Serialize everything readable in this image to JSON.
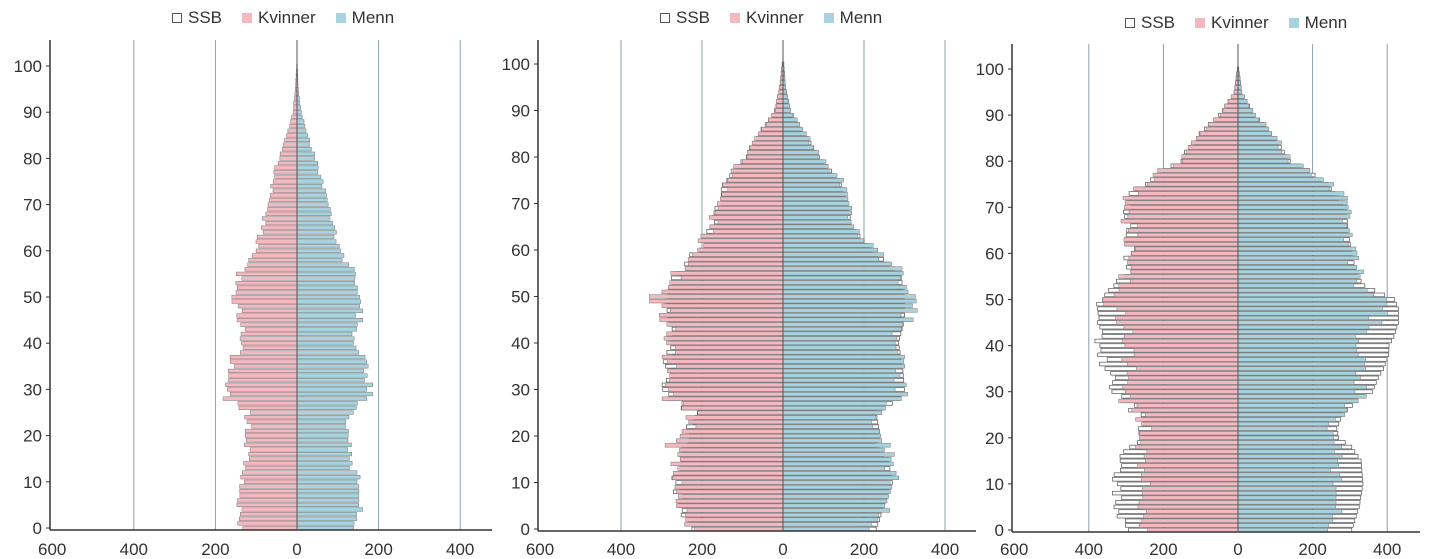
{
  "chart_data": [
    {
      "type": "bar",
      "orientation": "horizontal-pyramid",
      "legend": {
        "placement": "top-center",
        "items": [
          "SSB",
          "Kvinner",
          "Menn"
        ]
      },
      "y_ticks": [
        "0",
        "10",
        "20",
        "30",
        "40",
        "50",
        "60",
        "70",
        "80",
        "90",
        "100"
      ],
      "x_ticks": [
        "600",
        "400",
        "200",
        "0",
        "200",
        "400"
      ],
      "xlim": [
        -600,
        500
      ],
      "ylim": [
        0,
        105
      ],
      "grid": true,
      "series": [
        {
          "name": "Kvinner",
          "anchors": [
            [
              0,
              140
            ],
            [
              5,
              140
            ],
            [
              10,
              140
            ],
            [
              15,
              120
            ],
            [
              20,
              120
            ],
            [
              25,
              120
            ],
            [
              28,
              170
            ],
            [
              30,
              175
            ],
            [
              33,
              170
            ],
            [
              36,
              160
            ],
            [
              40,
              130
            ],
            [
              45,
              140
            ],
            [
              50,
              150
            ],
            [
              53,
              150
            ],
            [
              55,
              140
            ],
            [
              60,
              100
            ],
            [
              65,
              85
            ],
            [
              70,
              70
            ],
            [
              75,
              60
            ],
            [
              80,
              45
            ],
            [
              85,
              25
            ],
            [
              90,
              10
            ],
            [
              95,
              4
            ],
            [
              100,
              1
            ]
          ]
        },
        {
          "name": "Menn",
          "anchors": [
            [
              0,
              150
            ],
            [
              5,
              150
            ],
            [
              10,
              150
            ],
            [
              15,
              125
            ],
            [
              20,
              125
            ],
            [
              25,
              130
            ],
            [
              28,
              170
            ],
            [
              30,
              185
            ],
            [
              33,
              175
            ],
            [
              36,
              165
            ],
            [
              40,
              140
            ],
            [
              45,
              150
            ],
            [
              50,
              150
            ],
            [
              53,
              150
            ],
            [
              55,
              140
            ],
            [
              60,
              100
            ],
            [
              65,
              90
            ],
            [
              70,
              75
            ],
            [
              75,
              60
            ],
            [
              80,
              45
            ],
            [
              85,
              25
            ],
            [
              90,
              10
            ],
            [
              95,
              3
            ],
            [
              100,
              1
            ]
          ]
        }
      ]
    },
    {
      "type": "bar",
      "orientation": "horizontal-pyramid",
      "legend": {
        "placement": "top-center",
        "items": [
          "SSB",
          "Kvinner",
          "Menn"
        ]
      },
      "y_ticks": [
        "0",
        "10",
        "20",
        "30",
        "40",
        "50",
        "60",
        "70",
        "80",
        "90",
        "100"
      ],
      "x_ticks": [
        "600",
        "400",
        "200",
        "0",
        "200",
        "400"
      ],
      "xlim": [
        -600,
        500
      ],
      "ylim": [
        0,
        105
      ],
      "grid": true,
      "series": [
        {
          "name": "SSB",
          "anchors": [
            [
              0,
              230
            ],
            [
              5,
              250
            ],
            [
              10,
              270
            ],
            [
              15,
              260
            ],
            [
              20,
              240
            ],
            [
              25,
              220
            ],
            [
              28,
              280
            ],
            [
              30,
              290
            ],
            [
              35,
              285
            ],
            [
              40,
              280
            ],
            [
              45,
              290
            ],
            [
              50,
              290
            ],
            [
              55,
              260
            ],
            [
              60,
              210
            ],
            [
              65,
              175
            ],
            [
              70,
              160
            ],
            [
              75,
              140
            ],
            [
              80,
              95
            ],
            [
              85,
              60
            ],
            [
              90,
              20
            ],
            [
              95,
              8
            ],
            [
              100,
              2
            ]
          ]
        },
        {
          "name": "Kvinner",
          "anchors": [
            [
              0,
              230
            ],
            [
              5,
              250
            ],
            [
              10,
              270
            ],
            [
              15,
              260
            ],
            [
              18,
              270
            ],
            [
              20,
              240
            ],
            [
              25,
              220
            ],
            [
              28,
              280
            ],
            [
              30,
              290
            ],
            [
              35,
              280
            ],
            [
              40,
              275
            ],
            [
              45,
              290
            ],
            [
              50,
              310
            ],
            [
              55,
              260
            ],
            [
              60,
              210
            ],
            [
              65,
              175
            ],
            [
              70,
              160
            ],
            [
              75,
              140
            ],
            [
              80,
              95
            ],
            [
              85,
              60
            ],
            [
              90,
              20
            ],
            [
              95,
              8
            ],
            [
              100,
              2
            ]
          ]
        },
        {
          "name": "Menn",
          "anchors": [
            [
              0,
              230
            ],
            [
              5,
              250
            ],
            [
              10,
              270
            ],
            [
              15,
              260
            ],
            [
              20,
              240
            ],
            [
              25,
              230
            ],
            [
              28,
              290
            ],
            [
              30,
              300
            ],
            [
              35,
              290
            ],
            [
              40,
              280
            ],
            [
              45,
              300
            ],
            [
              50,
              320
            ],
            [
              55,
              290
            ],
            [
              60,
              220
            ],
            [
              65,
              170
            ],
            [
              70,
              160
            ],
            [
              75,
              140
            ],
            [
              80,
              90
            ],
            [
              85,
              55
            ],
            [
              90,
              18
            ],
            [
              95,
              6
            ],
            [
              100,
              2
            ]
          ]
        }
      ]
    },
    {
      "type": "bar",
      "orientation": "horizontal-pyramid",
      "legend": {
        "placement": "top-center",
        "items": [
          "SSB",
          "Kvinner",
          "Menn"
        ]
      },
      "y_ticks": [
        "0",
        "10",
        "20",
        "30",
        "40",
        "50",
        "60",
        "70",
        "80",
        "90",
        "100"
      ],
      "x_ticks": [
        "600",
        "400",
        "200",
        "0",
        "200",
        "400"
      ],
      "xlim": [
        -600,
        500
      ],
      "ylim": [
        0,
        105
      ],
      "grid": true,
      "series": [
        {
          "name": "SSB",
          "anchors": [
            [
              0,
              300
            ],
            [
              5,
              320
            ],
            [
              10,
              330
            ],
            [
              15,
              325
            ],
            [
              18,
              300
            ],
            [
              20,
              265
            ],
            [
              22,
              260
            ],
            [
              25,
              270
            ],
            [
              28,
              300
            ],
            [
              30,
              330
            ],
            [
              33,
              340
            ],
            [
              35,
              350
            ],
            [
              38,
              370
            ],
            [
              42,
              380
            ],
            [
              45,
              380
            ],
            [
              48,
              380
            ],
            [
              50,
              370
            ],
            [
              53,
              330
            ],
            [
              55,
              300
            ],
            [
              60,
              290
            ],
            [
              65,
              290
            ],
            [
              70,
              300
            ],
            [
              72,
              300
            ],
            [
              75,
              250
            ],
            [
              78,
              200
            ],
            [
              80,
              160
            ],
            [
              85,
              110
            ],
            [
              88,
              80
            ],
            [
              90,
              50
            ],
            [
              95,
              10
            ],
            [
              100,
              2
            ]
          ]
        },
        {
          "name": "Kvinner",
          "anchors": [
            [
              0,
              255
            ],
            [
              5,
              255
            ],
            [
              10,
              255
            ],
            [
              15,
              255
            ],
            [
              18,
              255
            ],
            [
              20,
              250
            ],
            [
              22,
              250
            ],
            [
              25,
              260
            ],
            [
              28,
              300
            ],
            [
              30,
              310
            ],
            [
              35,
              290
            ],
            [
              40,
              290
            ],
            [
              45,
              310
            ],
            [
              50,
              340
            ],
            [
              53,
              320
            ],
            [
              55,
              300
            ],
            [
              60,
              285
            ],
            [
              65,
              285
            ],
            [
              70,
              300
            ],
            [
              72,
              310
            ],
            [
              75,
              250
            ],
            [
              78,
              200
            ],
            [
              80,
              160
            ],
            [
              85,
              110
            ],
            [
              88,
              80
            ],
            [
              90,
              50
            ],
            [
              95,
              10
            ],
            [
              100,
              2
            ]
          ]
        },
        {
          "name": "Menn",
          "anchors": [
            [
              0,
              260
            ],
            [
              5,
              260
            ],
            [
              10,
              260
            ],
            [
              15,
              260
            ],
            [
              18,
              260
            ],
            [
              20,
              255
            ],
            [
              22,
              255
            ],
            [
              25,
              270
            ],
            [
              28,
              320
            ],
            [
              30,
              340
            ],
            [
              35,
              330
            ],
            [
              40,
              320
            ],
            [
              45,
              360
            ],
            [
              50,
              390
            ],
            [
              53,
              330
            ],
            [
              55,
              320
            ],
            [
              60,
              300
            ],
            [
              65,
              290
            ],
            [
              70,
              290
            ],
            [
              72,
              280
            ],
            [
              75,
              240
            ],
            [
              78,
              190
            ],
            [
              80,
              140
            ],
            [
              85,
              100
            ],
            [
              88,
              70
            ],
            [
              90,
              45
            ],
            [
              95,
              10
            ],
            [
              100,
              2
            ]
          ]
        }
      ]
    }
  ],
  "colors": {
    "ssb": "#ffffff",
    "ssb_stroke": "#555555",
    "kvinner": "#f4b8c0",
    "menn": "#a8d3de",
    "grid": "#8aa0a8",
    "axis": "#333333"
  }
}
